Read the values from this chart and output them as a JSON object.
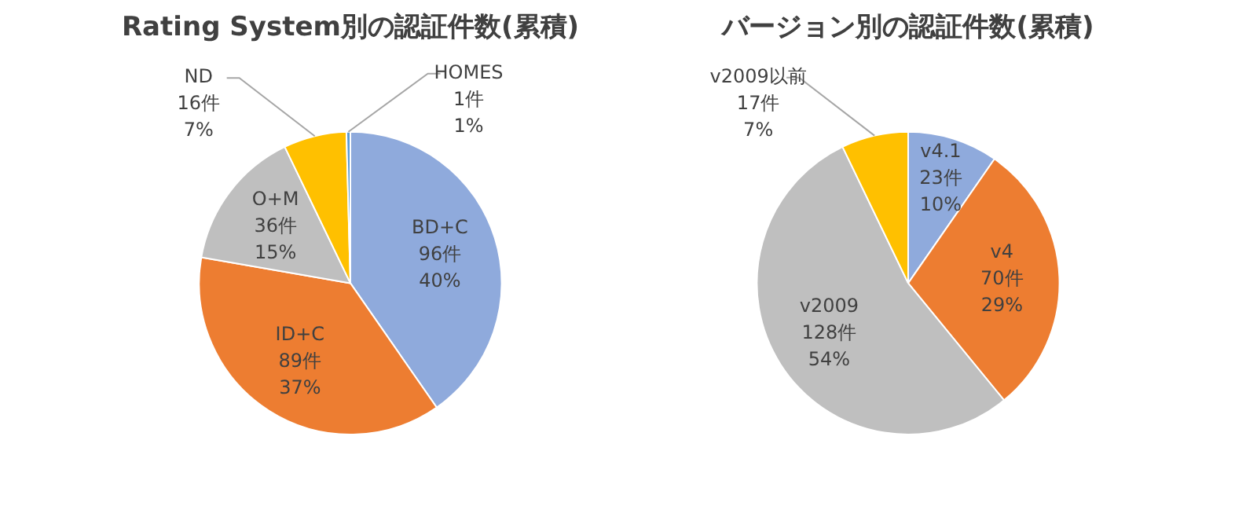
{
  "chart_data": [
    {
      "type": "pie",
      "title": "Rating System別の認証件数(累積)",
      "categories": [
        "BD+C",
        "ID+C",
        "O+M",
        "ND",
        "HOMES"
      ],
      "values": [
        96,
        89,
        36,
        16,
        1
      ],
      "colors": [
        "#8faadc",
        "#ed7d31",
        "#bfbfbf",
        "#ffc000",
        "#5b9bd5"
      ],
      "value_labels": [
        "96件\n40%",
        "89件\n37%",
        "36件\n15%",
        "16件\n7%",
        "1件\n1%"
      ],
      "legend": false
    },
    {
      "type": "pie",
      "title": "バージョン別の認証件数(累積)",
      "categories": [
        "v4.1",
        "v4",
        "v2009",
        "v2009以前"
      ],
      "values": [
        23,
        70,
        128,
        17
      ],
      "colors": [
        "#8faadc",
        "#ed7d31",
        "#bfbfbf",
        "#ffc000"
      ],
      "value_labels": [
        "23件\n10%",
        "70件\n29%",
        "128件\n54%",
        "17件\n7%"
      ],
      "legend": false
    }
  ]
}
